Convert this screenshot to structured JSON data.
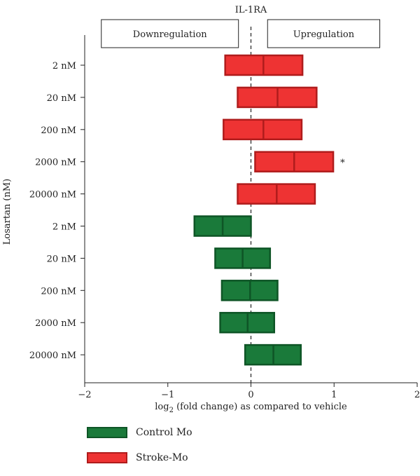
{
  "chart_data": {
    "type": "bar",
    "subtype": "floating-box",
    "title": "IL-1RA",
    "xlabel_main": "log",
    "xlabel_sub": "2",
    "xlabel_rest": " (fold change) as compared to vehicle",
    "ylabel": "Losartan (nM)",
    "xlim": [
      -2,
      2
    ],
    "xticks": [
      -2,
      -1,
      0,
      1,
      2
    ],
    "xtick_labels": [
      "−2",
      "−1",
      "0",
      "1",
      "2"
    ],
    "zero_line": "dashed",
    "regions": [
      {
        "label": "Downregulation",
        "from": -1.8,
        "to": -0.15
      },
      {
        "label": "Upregulation",
        "from": 0.2,
        "to": 1.55
      }
    ],
    "categories": [
      "2 nM",
      "20 nM",
      "200 nM",
      "2000 nM",
      "20000 nM",
      "2 nM",
      "20 nM",
      "200 nM",
      "2000 nM",
      "20000 nM"
    ],
    "series": [
      {
        "name": "Stroke-Mo",
        "color": "#ee3333",
        "border": "#b01c1c",
        "rows": [
          {
            "category": "2 nM",
            "min": -0.31,
            "mid": 0.15,
            "max": 0.62
          },
          {
            "category": "20 nM",
            "min": -0.16,
            "mid": 0.32,
            "max": 0.79
          },
          {
            "category": "200 nM",
            "min": -0.33,
            "mid": 0.15,
            "max": 0.61
          },
          {
            "category": "2000 nM",
            "min": 0.05,
            "mid": 0.52,
            "max": 0.99,
            "annotation": "*"
          },
          {
            "category": "20000 nM",
            "min": -0.16,
            "mid": 0.31,
            "max": 0.77
          }
        ]
      },
      {
        "name": "Control Mo",
        "color": "#1a7a3a",
        "border": "#0e5526",
        "rows": [
          {
            "category": "2 nM",
            "min": -0.68,
            "mid": -0.34,
            "max": 0.0
          },
          {
            "category": "20 nM",
            "min": -0.43,
            "mid": -0.1,
            "max": 0.23
          },
          {
            "category": "200 nM",
            "min": -0.35,
            "mid": -0.01,
            "max": 0.32
          },
          {
            "category": "2000 nM",
            "min": -0.37,
            "mid": -0.04,
            "max": 0.28
          },
          {
            "category": "20000 nM",
            "min": -0.07,
            "mid": 0.27,
            "max": 0.6
          }
        ]
      }
    ],
    "legend": {
      "placement": "bottom-left",
      "items": [
        {
          "name": "Control Mo",
          "color": "#1a7a3a",
          "border": "#0e5526"
        },
        {
          "name": "Stroke-Mo",
          "color": "#ee3333",
          "border": "#b01c1c"
        }
      ]
    }
  }
}
